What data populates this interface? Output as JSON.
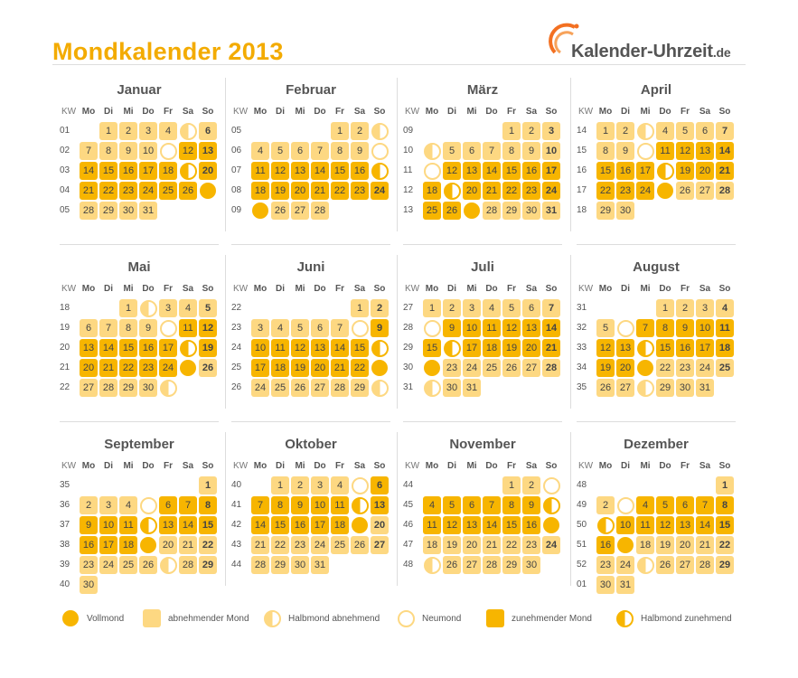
{
  "title": "Mondkalender 2013",
  "logo": {
    "main": "Kalender-Uhrzeit",
    "tld": ".de"
  },
  "headers": [
    "KW",
    "Mo",
    "Di",
    "Mi",
    "Do",
    "Fr",
    "Sa",
    "So"
  ],
  "months": [
    {
      "name": "Januar",
      "weeks": [
        {
          "kw": "01",
          "days": [
            null,
            "1a",
            "2a",
            "3a",
            "4a",
            "5ha",
            "6a"
          ]
        },
        {
          "kw": "02",
          "days": [
            "7a",
            "8a",
            "9a",
            "10a",
            "11nm",
            "12z",
            "13z"
          ]
        },
        {
          "kw": "03",
          "days": [
            "14z",
            "15z",
            "16z",
            "17z",
            "18z",
            "19hz",
            "20z"
          ]
        },
        {
          "kw": "04",
          "days": [
            "21z",
            "22z",
            "23z",
            "24z",
            "25z",
            "26z",
            "27fm"
          ]
        },
        {
          "kw": "05",
          "days": [
            "28a",
            "29a",
            "30a",
            "31a",
            null,
            null,
            null
          ]
        }
      ]
    },
    {
      "name": "Februar",
      "weeks": [
        {
          "kw": "05",
          "days": [
            null,
            null,
            null,
            null,
            "1a",
            "2a",
            "3ha"
          ]
        },
        {
          "kw": "06",
          "days": [
            "4a",
            "5a",
            "6a",
            "7a",
            "8a",
            "9a",
            "10nm"
          ]
        },
        {
          "kw": "07",
          "days": [
            "11z",
            "12z",
            "13z",
            "14z",
            "15z",
            "16z",
            "17hz"
          ]
        },
        {
          "kw": "08",
          "days": [
            "18z",
            "19z",
            "20z",
            "21z",
            "22z",
            "23z",
            "24z"
          ]
        },
        {
          "kw": "09",
          "days": [
            "25fm",
            "26a",
            "27a",
            "28a",
            null,
            null,
            null
          ]
        }
      ]
    },
    {
      "name": "März",
      "weeks": [
        {
          "kw": "09",
          "days": [
            null,
            null,
            null,
            null,
            "1a",
            "2a",
            "3a"
          ]
        },
        {
          "kw": "10",
          "days": [
            "4ha",
            "5a",
            "6a",
            "7a",
            "8a",
            "9a",
            "10a"
          ]
        },
        {
          "kw": "11",
          "days": [
            "11nm",
            "12z",
            "13z",
            "14z",
            "15z",
            "16z",
            "17z"
          ]
        },
        {
          "kw": "12",
          "days": [
            "18z",
            "19hz",
            "20z",
            "21z",
            "22z",
            "23z",
            "24z"
          ]
        },
        {
          "kw": "13",
          "days": [
            "25z",
            "26z",
            "27fm",
            "28a",
            "29a",
            "30a",
            "31a"
          ]
        }
      ]
    },
    {
      "name": "April",
      "weeks": [
        {
          "kw": "14",
          "days": [
            "1a",
            "2a",
            "3ha",
            "4a",
            "5a",
            "6a",
            "7a"
          ]
        },
        {
          "kw": "15",
          "days": [
            "8a",
            "9a",
            "10nm",
            "11z",
            "12z",
            "13z",
            "14z"
          ]
        },
        {
          "kw": "16",
          "days": [
            "15z",
            "16z",
            "17z",
            "18hz",
            "19z",
            "20z",
            "21z"
          ]
        },
        {
          "kw": "17",
          "days": [
            "22z",
            "23z",
            "24z",
            "25fm",
            "26a",
            "27a",
            "28a"
          ]
        },
        {
          "kw": "18",
          "days": [
            "29a",
            "30a",
            null,
            null,
            null,
            null,
            null
          ]
        }
      ]
    },
    {
      "name": "Mai",
      "weeks": [
        {
          "kw": "18",
          "days": [
            null,
            null,
            "1a",
            "2ha",
            "3a",
            "4a",
            "5a"
          ]
        },
        {
          "kw": "19",
          "days": [
            "6a",
            "7a",
            "8a",
            "9a",
            "10nm",
            "11z",
            "12z"
          ]
        },
        {
          "kw": "20",
          "days": [
            "13z",
            "14z",
            "15z",
            "16z",
            "17z",
            "18hz",
            "19z"
          ]
        },
        {
          "kw": "21",
          "days": [
            "20z",
            "21z",
            "22z",
            "23z",
            "24z",
            "25fm",
            "26a"
          ]
        },
        {
          "kw": "22",
          "days": [
            "27a",
            "28a",
            "29a",
            "30a",
            "31ha",
            null,
            null
          ]
        }
      ]
    },
    {
      "name": "Juni",
      "weeks": [
        {
          "kw": "22",
          "days": [
            null,
            null,
            null,
            null,
            null,
            "1a",
            "2a"
          ]
        },
        {
          "kw": "23",
          "days": [
            "3a",
            "4a",
            "5a",
            "6a",
            "7a",
            "8nm",
            "9z"
          ]
        },
        {
          "kw": "24",
          "days": [
            "10z",
            "11z",
            "12z",
            "13z",
            "14z",
            "15z",
            "16hz"
          ]
        },
        {
          "kw": "25",
          "days": [
            "17z",
            "18z",
            "19z",
            "20z",
            "21z",
            "22z",
            "23fm"
          ]
        },
        {
          "kw": "26",
          "days": [
            "24a",
            "25a",
            "26a",
            "27a",
            "28a",
            "29a",
            "30ha"
          ]
        }
      ]
    },
    {
      "name": "Juli",
      "weeks": [
        {
          "kw": "27",
          "days": [
            "1a",
            "2a",
            "3a",
            "4a",
            "5a",
            "6a",
            "7a"
          ]
        },
        {
          "kw": "28",
          "days": [
            "8nm",
            "9z",
            "10z",
            "11z",
            "12z",
            "13z",
            "14z"
          ]
        },
        {
          "kw": "29",
          "days": [
            "15z",
            "16hz",
            "17z",
            "18z",
            "19z",
            "20z",
            "21z"
          ]
        },
        {
          "kw": "30",
          "days": [
            "22fm",
            "23a",
            "24a",
            "25a",
            "26a",
            "27a",
            "28a"
          ]
        },
        {
          "kw": "31",
          "days": [
            "29ha",
            "30a",
            "31a",
            null,
            null,
            null,
            null
          ]
        }
      ]
    },
    {
      "name": "August",
      "weeks": [
        {
          "kw": "31",
          "days": [
            null,
            null,
            null,
            "1a",
            "2a",
            "3a",
            "4a"
          ]
        },
        {
          "kw": "32",
          "days": [
            "5a",
            "6nm",
            "7z",
            "8z",
            "9z",
            "10z",
            "11z"
          ]
        },
        {
          "kw": "33",
          "days": [
            "12z",
            "13z",
            "14hz",
            "15z",
            "16z",
            "17z",
            "18z"
          ]
        },
        {
          "kw": "34",
          "days": [
            "19z",
            "20z",
            "21fm",
            "22a",
            "23a",
            "24a",
            "25a"
          ]
        },
        {
          "kw": "35",
          "days": [
            "26a",
            "27a",
            "28ha",
            "29a",
            "30a",
            "31a",
            null
          ]
        }
      ]
    },
    {
      "name": "September",
      "weeks": [
        {
          "kw": "35",
          "days": [
            null,
            null,
            null,
            null,
            null,
            null,
            "1a"
          ]
        },
        {
          "kw": "36",
          "days": [
            "2a",
            "3a",
            "4a",
            "5nm",
            "6z",
            "7z",
            "8z"
          ]
        },
        {
          "kw": "37",
          "days": [
            "9z",
            "10z",
            "11z",
            "12hz",
            "13z",
            "14z",
            "15z"
          ]
        },
        {
          "kw": "38",
          "days": [
            "16z",
            "17z",
            "18z",
            "19fm",
            "20a",
            "21a",
            "22a"
          ]
        },
        {
          "kw": "39",
          "days": [
            "23a",
            "24a",
            "25a",
            "26a",
            "27ha",
            "28a",
            "29a"
          ]
        },
        {
          "kw": "40",
          "days": [
            "30a",
            null,
            null,
            null,
            null,
            null,
            null
          ]
        }
      ]
    },
    {
      "name": "Oktober",
      "weeks": [
        {
          "kw": "40",
          "days": [
            null,
            "1a",
            "2a",
            "3a",
            "4a",
            "5nm",
            "6z"
          ]
        },
        {
          "kw": "41",
          "days": [
            "7z",
            "8z",
            "9z",
            "10z",
            "11z",
            "12hz",
            "13z"
          ]
        },
        {
          "kw": "42",
          "days": [
            "14z",
            "15z",
            "16z",
            "17z",
            "18z",
            "19fm",
            "20a"
          ]
        },
        {
          "kw": "43",
          "days": [
            "21a",
            "22a",
            "23a",
            "24a",
            "25a",
            "26a",
            "27a"
          ]
        },
        {
          "kw": "44",
          "days": [
            "28a",
            "29a",
            "30a",
            "31a",
            null,
            null,
            null
          ]
        }
      ]
    },
    {
      "name": "November",
      "weeks": [
        {
          "kw": "44",
          "days": [
            null,
            null,
            null,
            null,
            "1a",
            "2a",
            "3nm"
          ]
        },
        {
          "kw": "45",
          "days": [
            "4z",
            "5z",
            "6z",
            "7z",
            "8z",
            "9z",
            "10hz"
          ]
        },
        {
          "kw": "46",
          "days": [
            "11z",
            "12z",
            "13z",
            "14z",
            "15z",
            "16z",
            "17fm"
          ]
        },
        {
          "kw": "47",
          "days": [
            "18a",
            "19a",
            "20a",
            "21a",
            "22a",
            "23a",
            "24a"
          ]
        },
        {
          "kw": "48",
          "days": [
            "25ha",
            "26a",
            "27a",
            "28a",
            "29a",
            "30a",
            null
          ]
        }
      ]
    },
    {
      "name": "Dezember",
      "weeks": [
        {
          "kw": "48",
          "days": [
            null,
            null,
            null,
            null,
            null,
            null,
            "1a"
          ]
        },
        {
          "kw": "49",
          "days": [
            "2a",
            "3nm",
            "4z",
            "5z",
            "6z",
            "7z",
            "8z"
          ]
        },
        {
          "kw": "50",
          "days": [
            "9hz",
            "10z",
            "11z",
            "12z",
            "13z",
            "14z",
            "15z"
          ]
        },
        {
          "kw": "51",
          "days": [
            "16z",
            "17fm",
            "18a",
            "19a",
            "20a",
            "21a",
            "22a"
          ]
        },
        {
          "kw": "52",
          "days": [
            "23a",
            "24a",
            "25ha",
            "26a",
            "27a",
            "28a",
            "29a"
          ]
        },
        {
          "kw": "01",
          "days": [
            "30a",
            "31a",
            null,
            null,
            null,
            null,
            null
          ]
        }
      ]
    }
  ],
  "legend": [
    {
      "type": "fm",
      "label": "Vollmond"
    },
    {
      "type": "a",
      "label": "abnehmender Mond"
    },
    {
      "type": "ha",
      "label": "Halbmond abnehmend"
    },
    {
      "type": "nm",
      "label": "Neumond"
    },
    {
      "type": "z",
      "label": "zunehmender Mond"
    },
    {
      "type": "hz",
      "label": "Halbmond zunehmend"
    }
  ],
  "colors": {
    "accent": "#f3ab00",
    "waxing": "#f7b500",
    "waning": "#fdd882"
  }
}
